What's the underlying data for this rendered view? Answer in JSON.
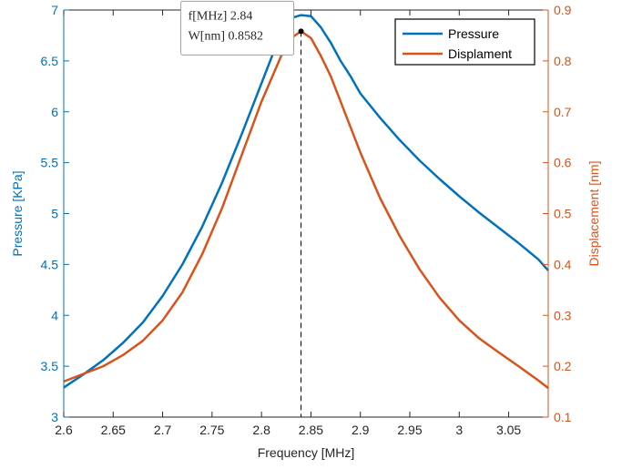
{
  "chart_data": {
    "type": "line",
    "xlabel": "Frequency [MHz]",
    "ylabel_left": "Pressure [KPa]",
    "ylabel_right": "Displacement [nm]",
    "xlim": [
      2.6,
      3.09
    ],
    "ylim_left": [
      3,
      7
    ],
    "ylim_right": [
      0.1,
      0.9
    ],
    "x_ticks": [
      2.6,
      2.65,
      2.7,
      2.75,
      2.8,
      2.85,
      2.9,
      2.95,
      3.0,
      3.05
    ],
    "x_tick_labels": [
      "2.6",
      "2.65",
      "2.7",
      "2.75",
      "2.8",
      "2.85",
      "2.9",
      "2.95",
      "3",
      "3.05"
    ],
    "y_left_ticks": [
      3,
      3.5,
      4,
      4.5,
      5,
      5.5,
      6,
      6.5,
      7
    ],
    "y_left_tick_labels": [
      "3",
      "3.5",
      "4",
      "4.5",
      "5",
      "5.5",
      "6",
      "6.5",
      "7"
    ],
    "y_right_ticks": [
      0.1,
      0.2,
      0.3,
      0.4,
      0.5,
      0.6,
      0.7,
      0.8,
      0.9
    ],
    "y_right_tick_labels": [
      "0.1",
      "0.2",
      "0.3",
      "0.4",
      "0.5",
      "0.6",
      "0.7",
      "0.8",
      "0.9"
    ],
    "grid": false,
    "legend_position": "top-right",
    "series": [
      {
        "name": "Pressure",
        "axis": "left",
        "color": "#0072BD",
        "x": [
          2.6,
          2.62,
          2.64,
          2.66,
          2.68,
          2.7,
          2.72,
          2.74,
          2.76,
          2.78,
          2.8,
          2.82,
          2.83,
          2.84,
          2.85,
          2.86,
          2.87,
          2.88,
          2.89,
          2.9,
          2.92,
          2.94,
          2.96,
          2.98,
          3.0,
          3.02,
          3.04,
          3.06,
          3.08,
          3.09
        ],
        "values": [
          3.29,
          3.42,
          3.56,
          3.73,
          3.93,
          4.19,
          4.5,
          4.87,
          5.3,
          5.78,
          6.28,
          6.78,
          6.92,
          6.95,
          6.94,
          6.83,
          6.68,
          6.5,
          6.35,
          6.18,
          5.94,
          5.72,
          5.52,
          5.34,
          5.17,
          5.01,
          4.86,
          4.71,
          4.55,
          4.44
        ]
      },
      {
        "name": "Displament",
        "axis": "right",
        "color": "#D95319",
        "x": [
          2.6,
          2.62,
          2.64,
          2.66,
          2.68,
          2.7,
          2.72,
          2.74,
          2.76,
          2.78,
          2.8,
          2.82,
          2.83,
          2.84,
          2.85,
          2.86,
          2.87,
          2.88,
          2.9,
          2.92,
          2.94,
          2.96,
          2.98,
          3.0,
          3.02,
          3.04,
          3.06,
          3.08,
          3.09
        ],
        "values": [
          0.17,
          0.185,
          0.2,
          0.222,
          0.25,
          0.29,
          0.345,
          0.42,
          0.51,
          0.615,
          0.72,
          0.81,
          0.845,
          0.858,
          0.845,
          0.81,
          0.77,
          0.72,
          0.62,
          0.53,
          0.455,
          0.39,
          0.335,
          0.29,
          0.255,
          0.227,
          0.2,
          0.172,
          0.157
        ]
      }
    ],
    "marker": {
      "x": 2.84,
      "y": 0.8582,
      "axis": "right",
      "label_line1": "f[MHz] 2.84",
      "label_line2": "W[nm] 0.8582"
    }
  }
}
